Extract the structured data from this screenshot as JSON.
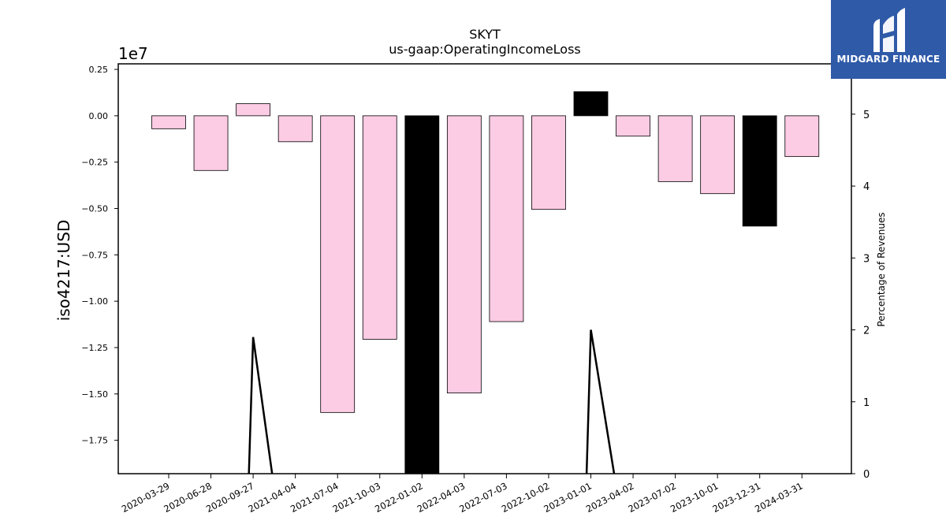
{
  "brand": {
    "name": "MIDGARD FINANCE",
    "colors": {
      "box": "#2f5aa8",
      "text": "#ffffff"
    }
  },
  "chart_data": {
    "type": "bar",
    "title": "SKYT",
    "subtitle": "us-gaap:OperatingIncomeLoss",
    "ylabel": "iso4217:USD",
    "y2label": "Percentage of Revenues",
    "offset_label": "1e7",
    "ylim": [
      -1.93,
      0.28
    ],
    "y2lim": [
      0,
      5.7
    ],
    "yticks": [
      0.25,
      0,
      -0.25,
      -0.5,
      -0.75,
      -1.0,
      -1.25,
      -1.5,
      -1.75
    ],
    "ytick_labels": [
      "0.25",
      "0.00",
      "−0.25",
      "−0.50",
      "−0.75",
      "−1.00",
      "−1.25",
      "−1.50",
      "−1.75"
    ],
    "y2ticks": [
      0,
      1,
      2,
      3,
      4,
      5
    ],
    "y2tick_labels": [
      "0",
      "1",
      "2",
      "3",
      "4",
      "5"
    ],
    "categories": [
      "2020-03-29",
      "2020-06-28",
      "2020-09-27",
      "2021-04-04",
      "2021-07-04",
      "2021-10-03",
      "2022-01-02",
      "2022-04-03",
      "2022-07-03",
      "2022-10-02",
      "2023-01-01",
      "2023-04-02",
      "2023-07-02",
      "2023-10-01",
      "2023-12-31",
      "2024-03-31"
    ],
    "values": [
      -0.07,
      -0.295,
      0.065,
      -0.14,
      -1.6,
      -1.205,
      -1.95,
      -1.495,
      -1.11,
      -0.505,
      0.13,
      -0.11,
      -0.355,
      -0.42,
      -0.595,
      -0.22
    ],
    "bar_colors": [
      "#fccbe4",
      "#fccbe4",
      "#fccbe4",
      "#fccbe4",
      "#fccbe4",
      "#fccbe4",
      "#000000",
      "#fccbe4",
      "#fccbe4",
      "#fccbe4",
      "#000000",
      "#fccbe4",
      "#fccbe4",
      "#fccbe4",
      "#000000",
      "#fccbe4"
    ],
    "percent_of_revenues": [
      {
        "x": 1.9,
        "y": 0
      },
      {
        "x": 2.0,
        "y": 1.9
      },
      {
        "x": 2.45,
        "y": 0
      },
      {
        "x": 9.9,
        "y": 0
      },
      {
        "x": 10.0,
        "y": 2.0
      },
      {
        "x": 10.55,
        "y": 0
      }
    ],
    "grid": false
  }
}
